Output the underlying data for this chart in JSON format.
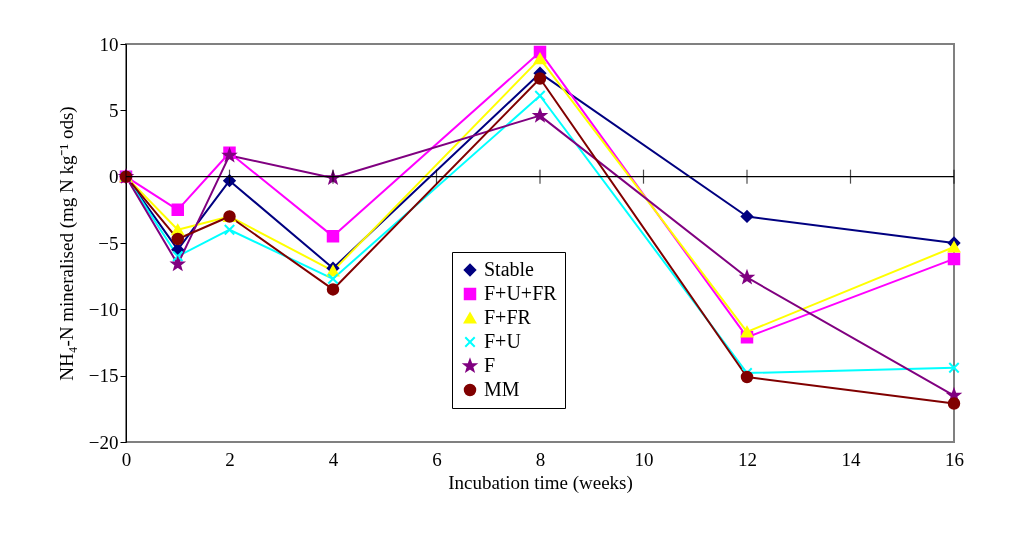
{
  "chart_data": {
    "type": "line",
    "xlabel": "Incubation time (weeks)",
    "ylabel": "NH₄-N mineralised (mg N kg⁻¹ ods)",
    "x": [
      0,
      1,
      2,
      4,
      8,
      12,
      16
    ],
    "series": [
      {
        "name": "Stable",
        "color": "#000080",
        "marker": "diamond",
        "values": [
          0,
          -5.5,
          -0.3,
          -6.9,
          7.8,
          -3.0,
          -5.0
        ]
      },
      {
        "name": "F+U+FR",
        "color": "#ff00ff",
        "marker": "square",
        "values": [
          0,
          -2.5,
          1.8,
          -4.5,
          9.4,
          -12.1,
          -6.2
        ]
      },
      {
        "name": "F+FR",
        "color": "#ffff00",
        "marker": "triangle",
        "values": [
          0,
          -4.0,
          -3.0,
          -7.1,
          8.9,
          -11.7,
          -5.3
        ]
      },
      {
        "name": "F+U",
        "color": "#00ffff",
        "marker": "cross",
        "values": [
          0,
          -6.0,
          -4.0,
          -7.7,
          6.1,
          -14.8,
          -14.4
        ]
      },
      {
        "name": "F",
        "color": "#800080",
        "marker": "star",
        "values": [
          0,
          -6.6,
          1.6,
          -0.1,
          4.6,
          -7.6,
          -16.5
        ]
      },
      {
        "name": "MM",
        "color": "#800000",
        "marker": "circle",
        "values": [
          0,
          -4.7,
          -3.0,
          -8.5,
          7.4,
          -15.1,
          -17.1
        ]
      }
    ],
    "xlim": [
      0,
      16
    ],
    "xticks": [
      0,
      2,
      4,
      6,
      8,
      10,
      12,
      14,
      16
    ],
    "ylim": [
      -20,
      10
    ],
    "yticks": [
      -20,
      -15,
      -10,
      -5,
      0,
      5,
      10
    ],
    "ref_lines": [
      {
        "axis": "y",
        "value": 0
      }
    ],
    "grid": false,
    "legend": "bottom"
  }
}
